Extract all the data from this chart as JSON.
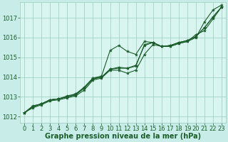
{
  "background_color": "#c8ede8",
  "plot_bg_color": "#d8f5f0",
  "grid_color": "#99ccbb",
  "line_color": "#1a5c2a",
  "marker_color": "#1a5c2a",
  "xlabel": "Graphe pression niveau de la mer (hPa)",
  "xlabel_fontsize": 7,
  "tick_fontsize": 6,
  "xlim": [
    -0.5,
    23.5
  ],
  "ylim": [
    1011.7,
    1017.8
  ],
  "yticks": [
    1012,
    1013,
    1014,
    1015,
    1016,
    1017
  ],
  "xticks": [
    0,
    1,
    2,
    3,
    4,
    5,
    6,
    7,
    8,
    9,
    10,
    11,
    12,
    13,
    14,
    15,
    16,
    17,
    18,
    19,
    20,
    21,
    22,
    23
  ],
  "lines": [
    {
      "x": [
        0,
        1,
        2,
        3,
        4,
        5,
        6,
        7,
        8,
        9,
        10,
        11,
        12,
        13,
        14,
        15,
        16,
        17,
        18,
        19,
        20,
        21,
        22,
        23
      ],
      "y": [
        1012.2,
        1012.55,
        1012.65,
        1012.85,
        1012.9,
        1013.05,
        1013.15,
        1013.5,
        1013.95,
        1014.05,
        1015.35,
        1015.6,
        1015.3,
        1015.15,
        1015.8,
        1015.75,
        1015.55,
        1015.55,
        1015.7,
        1015.8,
        1016.15,
        1016.35,
        1016.95,
        1017.55
      ]
    },
    {
      "x": [
        0,
        1,
        2,
        3,
        4,
        5,
        6,
        7,
        8,
        9,
        10,
        11,
        12,
        13,
        14,
        15,
        16,
        17,
        18,
        19,
        20,
        21,
        22,
        23
      ],
      "y": [
        1012.2,
        1012.5,
        1012.65,
        1012.85,
        1012.9,
        1013.0,
        1013.1,
        1013.45,
        1013.9,
        1014.0,
        1014.4,
        1014.5,
        1014.45,
        1014.6,
        1015.6,
        1015.75,
        1015.55,
        1015.6,
        1015.75,
        1015.85,
        1016.05,
        1016.5,
        1017.05,
        1017.55
      ]
    },
    {
      "x": [
        0,
        1,
        2,
        3,
        4,
        5,
        6,
        7,
        8,
        9,
        10,
        11,
        12,
        13,
        14,
        15,
        16,
        17,
        18,
        19,
        20,
        21,
        22,
        23
      ],
      "y": [
        1012.2,
        1012.5,
        1012.65,
        1012.85,
        1012.9,
        1013.0,
        1013.15,
        1013.45,
        1013.95,
        1014.0,
        1014.4,
        1014.45,
        1014.45,
        1014.55,
        1015.65,
        1015.75,
        1015.55,
        1015.6,
        1015.75,
        1015.85,
        1016.05,
        1016.5,
        1017.05,
        1017.55
      ]
    },
    {
      "x": [
        0,
        1,
        2,
        3,
        4,
        5,
        6,
        7,
        8,
        9,
        10,
        11,
        12,
        13,
        14,
        15,
        16,
        17,
        18,
        19,
        20,
        21,
        22,
        23
      ],
      "y": [
        1012.2,
        1012.45,
        1012.6,
        1012.8,
        1012.85,
        1012.95,
        1013.05,
        1013.35,
        1013.85,
        1013.95,
        1014.35,
        1014.35,
        1014.2,
        1014.35,
        1015.15,
        1015.65,
        1015.55,
        1015.55,
        1015.7,
        1015.8,
        1016.0,
        1016.8,
        1017.4,
        1017.65
      ]
    }
  ]
}
